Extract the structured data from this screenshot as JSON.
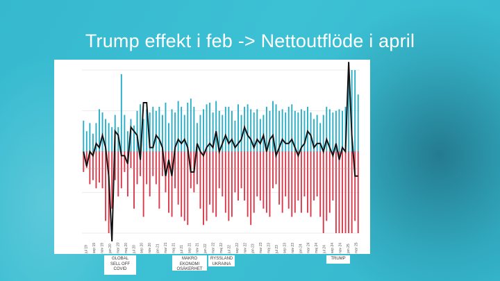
{
  "slide": {
    "title": "Trump effekt i feb -> Nettoutflöde i april"
  },
  "annotations": [
    {
      "id": "covid",
      "lines": [
        "GLOBAL",
        "SELL OFF",
        "COVID"
      ]
    },
    {
      "id": "makro",
      "lines": [
        "MAKRO",
        "EKONOMI",
        "OSÄKERHET"
      ]
    },
    {
      "id": "ryssland",
      "lines": [
        "RYSSLAND",
        "UKRAINA"
      ]
    },
    {
      "id": "trump",
      "lines": [
        "TRUMP"
      ]
    }
  ],
  "colors": {
    "inflow": "#29aec6",
    "outflow": "#d9394a",
    "net": "#111111",
    "grid": "#e4e4e4"
  },
  "chart_data": {
    "type": "bar",
    "ylim": [
      -100,
      100
    ],
    "grid": true,
    "tick_labels": [
      "jul 19",
      "sep 19",
      "nov 19",
      "jan 20",
      "mar 20",
      "maj 20",
      "jul 20",
      "sep 20",
      "nov 20",
      "jan 21",
      "mar 21",
      "maj 21",
      "jul 21",
      "sep 21",
      "nov 21",
      "jan 22",
      "mar 22",
      "maj 22",
      "jul 22",
      "sep 22",
      "nov 22",
      "jan 23",
      "mar 23",
      "maj 23",
      "jul 23",
      "sep 23",
      "nov 23",
      "jan 24",
      "mar 24",
      "maj 24",
      "jul 24",
      "sep 24",
      "nov 24",
      "jan 25",
      "mar 25"
    ],
    "series": [
      {
        "values": [
          38,
          25,
          35,
          22,
          35,
          52,
          48,
          40,
          35,
          30,
          45,
          30,
          95,
          45,
          25,
          40,
          32,
          50,
          58,
          40,
          52,
          48,
          55,
          50,
          55,
          45,
          60,
          35,
          52,
          48,
          62,
          55,
          45,
          60,
          65,
          55,
          35,
          45,
          52,
          58,
          60,
          48,
          62,
          50,
          45,
          55,
          55,
          50,
          38,
          58,
          45,
          55,
          58,
          52,
          48,
          52,
          40,
          45,
          55,
          50,
          62,
          58,
          50,
          52,
          48,
          55,
          58,
          50,
          48,
          52,
          50,
          55,
          48,
          40,
          45,
          35,
          45,
          55,
          52,
          48,
          50,
          52,
          50,
          55,
          100,
          100,
          100,
          70
        ]
      },
      {
        "values": [
          -25,
          -20,
          -40,
          -35,
          -45,
          -38,
          -45,
          -85,
          -100,
          -70,
          -35,
          -55,
          -45,
          -25,
          -55,
          -20,
          -70,
          -40,
          -30,
          -80,
          -40,
          -55,
          -30,
          -40,
          -70,
          -30,
          -50,
          -75,
          -80,
          -45,
          -65,
          -80,
          -85,
          -90,
          -45,
          -50,
          -40,
          -70,
          -90,
          -85,
          -65,
          -75,
          -80,
          -45,
          -55,
          -75,
          -85,
          -80,
          -50,
          -60,
          -45,
          -60,
          -80,
          -90,
          -75,
          -55,
          -60,
          -70,
          -75,
          -80,
          -45,
          -40,
          -65,
          -75,
          -55,
          -70,
          -80,
          -75,
          -60,
          -75,
          -55,
          -75,
          -80,
          -60,
          -55,
          -80,
          -100,
          -85,
          -75,
          -60,
          -100,
          -100,
          -100,
          -100,
          -100,
          -100,
          -85,
          -100
        ]
      },
      {
        "values": [
          0,
          -18,
          0,
          -5,
          10,
          5,
          20,
          5,
          -30,
          -110,
          25,
          20,
          -5,
          -5,
          -15,
          30,
          25,
          20,
          -10,
          60,
          60,
          5,
          5,
          20,
          15,
          5,
          -30,
          -10,
          -30,
          5,
          15,
          10,
          15,
          5,
          -25,
          -25,
          10,
          0,
          -5,
          5,
          10,
          5,
          25,
          0,
          10,
          20,
          10,
          15,
          5,
          10,
          15,
          30,
          20,
          15,
          5,
          15,
          10,
          20,
          0,
          15,
          20,
          -5,
          5,
          15,
          10,
          10,
          15,
          5,
          -5,
          5,
          10,
          25,
          20,
          5,
          10,
          10,
          0,
          15,
          5,
          -5,
          10,
          -10,
          5,
          0,
          110,
          20,
          -30,
          -30
        ]
      }
    ]
  }
}
